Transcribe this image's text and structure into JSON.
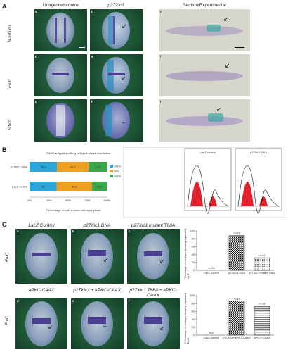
{
  "panelA": {
    "letter": "A",
    "col_headers": [
      "Uninjected control",
      "p27Xic1",
      "Section/Experimental"
    ],
    "row_headers": [
      "N-tubulin",
      "En/C",
      "Sox3"
    ],
    "sub_labels": [
      "a",
      "b",
      "c",
      "d",
      "e",
      "f",
      "g",
      "h",
      "i"
    ]
  },
  "panelB": {
    "letter": "B",
    "bar_title": "FACS analysis profiling cell cycle phase distribution",
    "legend": [
      "G1%",
      "S%",
      "G2%"
    ],
    "xlabel": "Percentage of cells in each cell cycle phase",
    "histo_titles": [
      "LacZ control",
      "p27Xic1 DNA"
    ]
  },
  "panelC": {
    "letter": "C",
    "row_headers": [
      "En/C",
      "En/C"
    ],
    "top_titles": [
      "LacZ Control",
      "p27Xic1 DNA",
      "p27Xic1 mutant T68A"
    ],
    "bottom_titles": [
      "aPKC-CAAX",
      "p27Xic1 + aPKC-CAAX",
      "p27Xic1 T68A + aPKC-CAAX"
    ],
    "sub_labels": [
      "a",
      "b",
      "c",
      "d",
      "e",
      "f"
    ],
    "bar1_ylabel": "Percentage of embryos showing expanded En/C",
    "bar2_ylabel": "Percentage of embryos showing expanded En/C",
    "bar1_n": [
      "n=38",
      "n=47",
      "n=42"
    ],
    "bar2_n": [
      "n=0",
      "n=33",
      "n=18"
    ]
  },
  "chart_data": [
    {
      "type": "bar",
      "orientation": "horizontal",
      "stacked": true,
      "categories": [
        "p27Xic1 DNA",
        "LacZ control"
      ],
      "series": [
        {
          "name": "G1%",
          "values": [
            35.6,
            35.0
          ],
          "color": "#2aa7d8"
        },
        {
          "name": "S%",
          "values": [
            40.7,
            45.8
          ],
          "color": "#f0a020"
        },
        {
          "name": "G2%",
          "values": [
            23.8,
            19.2
          ],
          "color": "#3aa84a"
        }
      ],
      "xlim": [
        0,
        100
      ]
    },
    {
      "type": "bar",
      "categories": [
        "LacZ control",
        "p27Xic1 DNA",
        "p27Xic1 mutant T68A"
      ],
      "values": [
        0,
        88,
        32
      ],
      "ylim": [
        0,
        100
      ]
    },
    {
      "type": "bar",
      "categories": [
        "LacZ control",
        "p27Xic1+aPKC-CAAX",
        "aPKC+CAAX"
      ],
      "values": [
        0,
        86,
        74
      ],
      "ylim": [
        0,
        100
      ]
    }
  ]
}
